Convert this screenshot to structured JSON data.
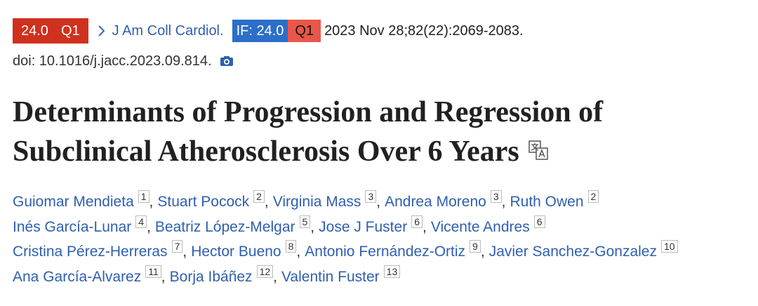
{
  "header": {
    "badge": {
      "impact": "24.0",
      "quartile": "Q1"
    },
    "journal": "J Am Coll Cardiol.",
    "if_badge": {
      "label": "IF: 24.0",
      "quartile": "Q1"
    },
    "citation": "2023 Nov 28;82(22):2069-2083.",
    "doi": "doi: 10.1016/j.jacc.2023.09.814."
  },
  "title_lines": [
    "Determinants of Progression and Regression of",
    "Subclinical Atherosclerosis Over 6 Years"
  ],
  "author_lines": [
    [
      {
        "name": "Guiomar Mendieta",
        "affiliation": "1"
      },
      {
        "name": "Stuart Pocock",
        "affiliation": "2"
      },
      {
        "name": "Virginia Mass",
        "affiliation": "3"
      },
      {
        "name": "Andrea Moreno",
        "affiliation": "3"
      },
      {
        "name": "Ruth Owen",
        "affiliation": "2"
      }
    ],
    [
      {
        "name": "Inés García-Lunar",
        "affiliation": "4"
      },
      {
        "name": "Beatriz López-Melgar",
        "affiliation": "5"
      },
      {
        "name": "Jose J Fuster",
        "affiliation": "6"
      },
      {
        "name": "Vicente Andres",
        "affiliation": "6"
      }
    ],
    [
      {
        "name": "Cristina Pérez-Herreras",
        "affiliation": "7"
      },
      {
        "name": "Hector Bueno",
        "affiliation": "8"
      },
      {
        "name": "Antonio Fernández-Ortiz",
        "affiliation": "9"
      },
      {
        "name": "Javier Sanchez-Gonzalez",
        "affiliation": "10"
      }
    ],
    [
      {
        "name": "Ana García-Alvarez",
        "affiliation": "11"
      },
      {
        "name": "Borja Ibáñez",
        "affiliation": "12"
      },
      {
        "name": "Valentin Fuster",
        "affiliation": "13"
      }
    ]
  ]
}
